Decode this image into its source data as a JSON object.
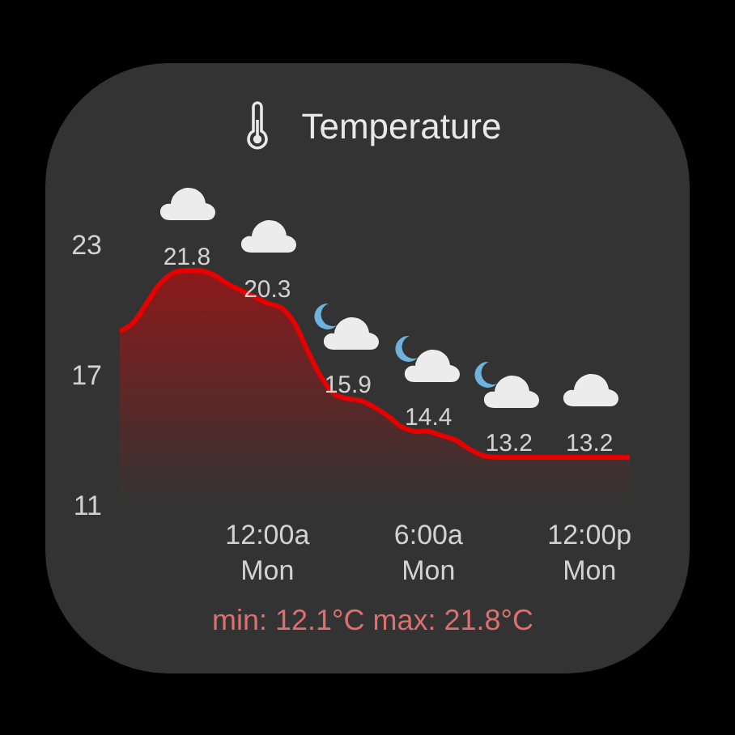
{
  "chart_data": {
    "type": "area",
    "title": "Temperature",
    "categories": [
      null,
      null,
      null,
      null,
      null,
      null,
      null,
      null,
      null,
      null,
      null,
      "12:00a\nMon",
      null,
      null,
      null,
      null,
      null,
      null,
      null,
      null,
      null,
      null,
      null,
      "6:00a\nMon",
      null,
      null,
      null,
      null,
      null,
      null,
      null,
      null,
      null,
      null,
      null,
      "12:00p\nMon",
      null,
      null,
      null
    ],
    "values": [
      19.0,
      19.4,
      20.3,
      21.2,
      21.7,
      21.8,
      21.8,
      21.6,
      21.2,
      20.9,
      20.6,
      20.3,
      20.1,
      19.4,
      18.1,
      16.9,
      16.1,
      15.9,
      15.8,
      15.5,
      15.1,
      14.6,
      14.4,
      14.4,
      14.2,
      14.0,
      13.6,
      13.3,
      13.2,
      13.2,
      13.2,
      13.2,
      13.2,
      13.2,
      13.2,
      13.2,
      13.2,
      13.2,
      13.2
    ],
    "value_labels": [
      null,
      null,
      null,
      null,
      null,
      "21.8",
      null,
      null,
      null,
      null,
      null,
      "20.3",
      null,
      null,
      null,
      null,
      null,
      "15.9",
      null,
      null,
      null,
      null,
      null,
      "14.4",
      null,
      null,
      null,
      null,
      null,
      "13.2",
      null,
      null,
      null,
      null,
      null,
      "13.2",
      null,
      null,
      null
    ],
    "color": "#e60000",
    "ylim": [
      11,
      23
    ],
    "yticks": [
      11,
      17,
      23
    ],
    "grid": false,
    "annotations": [
      "min: 12.1°C max: 21.8°C"
    ]
  }
}
